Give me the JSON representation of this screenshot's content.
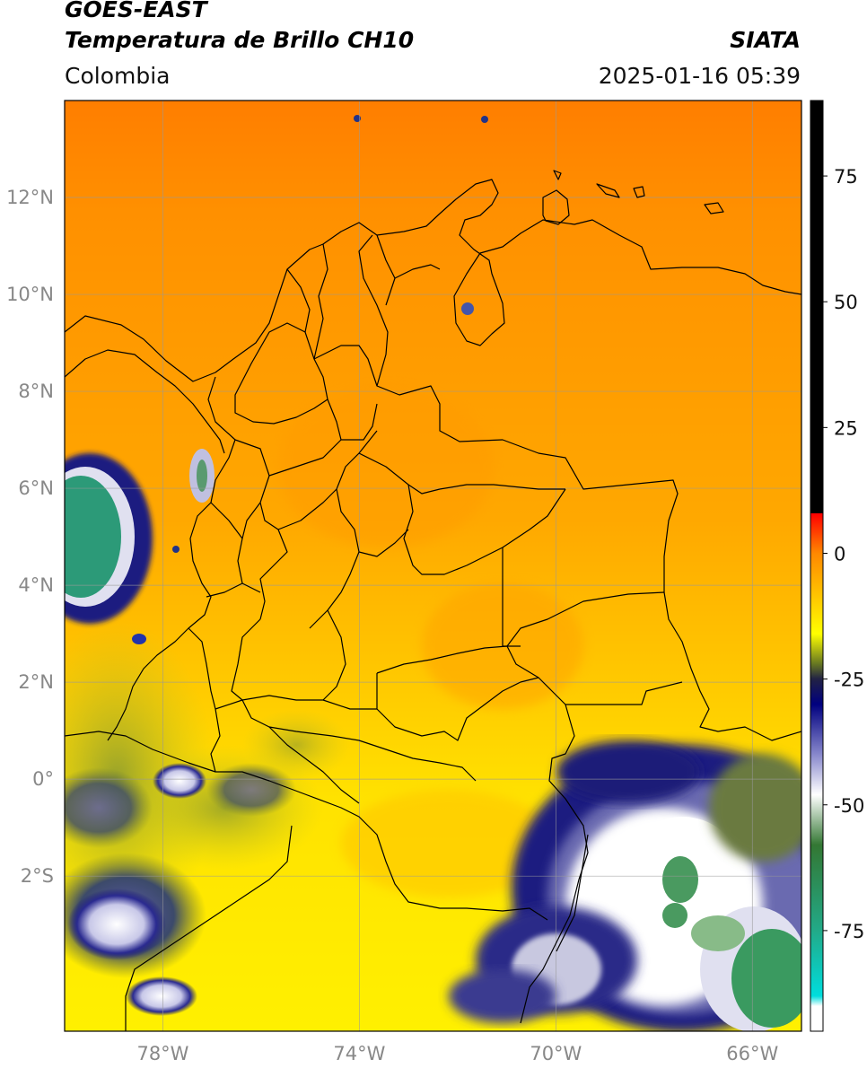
{
  "header": {
    "satellite": "GOES-EAST",
    "product": "Temperatura de Brillo CH10",
    "brand": "SIATA",
    "region": "Colombia",
    "datetime": "2025-01-16 05:39"
  },
  "map": {
    "lat_ticks": [
      {
        "value": 12,
        "label": "12°N"
      },
      {
        "value": 10,
        "label": "10°N"
      },
      {
        "value": 8,
        "label": "8°N"
      },
      {
        "value": 6,
        "label": "6°N"
      },
      {
        "value": 4,
        "label": "4°N"
      },
      {
        "value": 2,
        "label": "2°N"
      },
      {
        "value": 0,
        "label": "0°"
      },
      {
        "value": -2,
        "label": "2°S"
      }
    ],
    "lon_ticks": [
      {
        "value": -78,
        "label": "78°W"
      },
      {
        "value": -74,
        "label": "74°W"
      },
      {
        "value": -70,
        "label": "70°W"
      },
      {
        "value": -66,
        "label": "66°W"
      }
    ],
    "extent": {
      "lon_min": -80,
      "lon_max": -65,
      "lat_min": -5.2,
      "lat_max": 14
    }
  },
  "colorbar": {
    "range": [
      -95,
      90
    ],
    "ticks": [
      {
        "value": 75,
        "label": "75"
      },
      {
        "value": 50,
        "label": "50"
      },
      {
        "value": 25,
        "label": "25"
      },
      {
        "value": 0,
        "label": "0"
      },
      {
        "value": -25,
        "label": "-25"
      },
      {
        "value": -50,
        "label": "-50"
      },
      {
        "value": -75,
        "label": "-75"
      }
    ],
    "stops": [
      {
        "value": 90,
        "color": "#000000"
      },
      {
        "value": 8,
        "color": "#000000"
      },
      {
        "value": 7.9,
        "color": "#ff0000"
      },
      {
        "value": 0,
        "color": "#ff8800"
      },
      {
        "value": -10,
        "color": "#ffd000"
      },
      {
        "value": -16,
        "color": "#ffff00"
      },
      {
        "value": -22,
        "color": "#667722"
      },
      {
        "value": -25,
        "color": "#222244"
      },
      {
        "value": -30,
        "color": "#00007f"
      },
      {
        "value": -40,
        "color": "#8888cc"
      },
      {
        "value": -48,
        "color": "#ffffff"
      },
      {
        "value": -58,
        "color": "#337733"
      },
      {
        "value": -75,
        "color": "#22aa88"
      },
      {
        "value": -88,
        "color": "#00dddd"
      },
      {
        "value": -90,
        "color": "#ffffff"
      },
      {
        "value": -95,
        "color": "#ffffff"
      }
    ]
  }
}
